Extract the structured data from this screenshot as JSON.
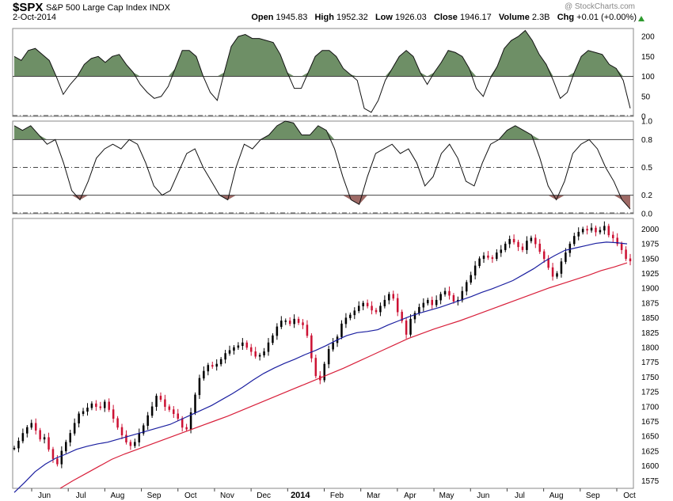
{
  "header": {
    "symbol": "$SPX",
    "name": "S&P 500 Large Cap Index",
    "exchange": "INDX",
    "date": "2-Oct-2014",
    "watermark": "@ StockCharts.com",
    "open_label": "Open",
    "open": "1945.83",
    "high_label": "High",
    "high": "1952.32",
    "low_label": "Low",
    "low": "1926.03",
    "close_label": "Close",
    "close": "1946.17",
    "volume_label": "Volume",
    "volume": "2.3B",
    "chg_label": "Chg",
    "chg": "+0.01 (+0.00%)"
  },
  "colors": {
    "osc_fill_up": "#6e8f66",
    "osc_fill_down": "#9e6a66",
    "sma_50": "#1b1fa0",
    "sma_200": "#d81f3a",
    "candle_up": "#000000",
    "candle_down": "#cc1133"
  },
  "chart_data": [
    {
      "type": "line",
      "panel": "top-oscillator",
      "ylim": [
        0,
        220
      ],
      "yticks": [
        0,
        50,
        100,
        150,
        200
      ],
      "reference_lines": [
        100
      ],
      "fill_above": 100,
      "series": [
        {
          "values": [
            150,
            140,
            165,
            170,
            155,
            140,
            100,
            55,
            80,
            100,
            130,
            145,
            150,
            135,
            150,
            155,
            130,
            110,
            80,
            60,
            45,
            50,
            75,
            120,
            165,
            165,
            150,
            100,
            60,
            40,
            110,
            175,
            200,
            205,
            195,
            195,
            190,
            185,
            155,
            110,
            70,
            70,
            110,
            150,
            165,
            165,
            150,
            120,
            105,
            90,
            20,
            10,
            40,
            90,
            120,
            150,
            165,
            150,
            110,
            80,
            110,
            135,
            165,
            160,
            150,
            120,
            70,
            50,
            95,
            125,
            170,
            190,
            200,
            215,
            190,
            155,
            130,
            90,
            45,
            60,
            110,
            150,
            165,
            160,
            155,
            130,
            120,
            90,
            20
          ]
        }
      ]
    },
    {
      "type": "line",
      "panel": "middle-oscillator",
      "ylim": [
        0,
        1
      ],
      "yticks": [
        0.0,
        0.2,
        0.5,
        0.8,
        1.0
      ],
      "reference_lines": [
        0.2,
        0.5,
        0.8
      ],
      "fill_above": 0.8,
      "fill_below": 0.2,
      "series": [
        {
          "values": [
            0.95,
            0.9,
            0.95,
            0.85,
            0.75,
            0.8,
            0.55,
            0.25,
            0.15,
            0.35,
            0.6,
            0.7,
            0.75,
            0.7,
            0.8,
            0.75,
            0.55,
            0.3,
            0.2,
            0.25,
            0.45,
            0.65,
            0.7,
            0.5,
            0.35,
            0.2,
            0.15,
            0.5,
            0.75,
            0.7,
            0.8,
            0.85,
            0.95,
            1.0,
            0.98,
            0.85,
            0.85,
            0.95,
            0.9,
            0.7,
            0.4,
            0.15,
            0.1,
            0.4,
            0.65,
            0.7,
            0.75,
            0.65,
            0.7,
            0.55,
            0.3,
            0.4,
            0.65,
            0.75,
            0.6,
            0.35,
            0.3,
            0.55,
            0.75,
            0.8,
            0.9,
            0.95,
            0.9,
            0.85,
            0.6,
            0.3,
            0.15,
            0.35,
            0.65,
            0.75,
            0.8,
            0.7,
            0.5,
            0.35,
            0.15,
            0.05
          ]
        }
      ]
    },
    {
      "type": "candlestick",
      "panel": "price",
      "ylim": [
        1562,
        2018
      ],
      "yticks": [
        1575,
        1600,
        1625,
        1650,
        1675,
        1700,
        1725,
        1750,
        1775,
        1800,
        1825,
        1850,
        1875,
        1900,
        1925,
        1950,
        1975,
        2000
      ],
      "xlabels": [
        "Jun",
        "Jul",
        "Aug",
        "Sep",
        "Oct",
        "Nov",
        "Dec",
        "2014",
        "Feb",
        "Mar",
        "Apr",
        "May",
        "Jun",
        "Jul",
        "Aug",
        "Sep",
        "Oct"
      ],
      "close": [
        1630,
        1642,
        1655,
        1665,
        1672,
        1660,
        1645,
        1648,
        1628,
        1612,
        1603,
        1625,
        1640,
        1655,
        1672,
        1688,
        1692,
        1698,
        1705,
        1700,
        1698,
        1708,
        1695,
        1680,
        1665,
        1652,
        1640,
        1634,
        1640,
        1655,
        1668,
        1685,
        1700,
        1718,
        1712,
        1700,
        1695,
        1688,
        1680,
        1665,
        1662,
        1690,
        1720,
        1748,
        1760,
        1770,
        1768,
        1772,
        1780,
        1790,
        1795,
        1800,
        1803,
        1808,
        1800,
        1793,
        1785,
        1787,
        1793,
        1808,
        1820,
        1835,
        1845,
        1845,
        1840,
        1848,
        1842,
        1838,
        1820,
        1782,
        1752,
        1745,
        1772,
        1797,
        1808,
        1818,
        1840,
        1850,
        1855,
        1862,
        1870,
        1875,
        1870,
        1863,
        1860,
        1870,
        1880,
        1890,
        1883,
        1860,
        1845,
        1822,
        1848,
        1858,
        1868,
        1875,
        1880,
        1872,
        1880,
        1890,
        1895,
        1888,
        1878,
        1880,
        1895,
        1910,
        1922,
        1938,
        1950,
        1955,
        1952,
        1950,
        1960,
        1965,
        1975,
        1983,
        1978,
        1970,
        1965,
        1980,
        1985,
        1975,
        1962,
        1950,
        1935,
        1920,
        1925,
        1945,
        1960,
        1975,
        1988,
        1995,
        2000,
        1998,
        2002,
        1995,
        1998,
        2005,
        1990,
        1985,
        1975,
        1965,
        1950,
        1946
      ],
      "series": [
        {
          "values": [
            1555,
            1572,
            1590,
            1603,
            1613,
            1620,
            1628,
            1633,
            1637,
            1640,
            1645,
            1650,
            1655,
            1660,
            1665,
            1670,
            1678,
            1686,
            1694,
            1702,
            1712,
            1722,
            1733,
            1745,
            1756,
            1765,
            1773,
            1780,
            1788,
            1795,
            1803,
            1812,
            1820,
            1825,
            1827,
            1830,
            1838,
            1845,
            1852,
            1858,
            1863,
            1868,
            1874,
            1880,
            1886,
            1893,
            1899,
            1906,
            1913,
            1923,
            1933,
            1945,
            1955,
            1964,
            1968,
            1972,
            1976,
            1978,
            1977,
            1975
          ]
        },
        {
          "values": [
            1562,
            1575,
            1587,
            1599,
            1611,
            1620,
            1628,
            1636,
            1644,
            1652,
            1660,
            1668,
            1676,
            1684,
            1693,
            1702,
            1711,
            1720,
            1729,
            1738,
            1747,
            1756,
            1765,
            1775,
            1785,
            1795,
            1805,
            1815,
            1823,
            1831,
            1838,
            1845,
            1853,
            1861,
            1869,
            1877,
            1885,
            1893,
            1901,
            1908,
            1915,
            1922,
            1930,
            1936,
            1943
          ]
        }
      ]
    }
  ]
}
